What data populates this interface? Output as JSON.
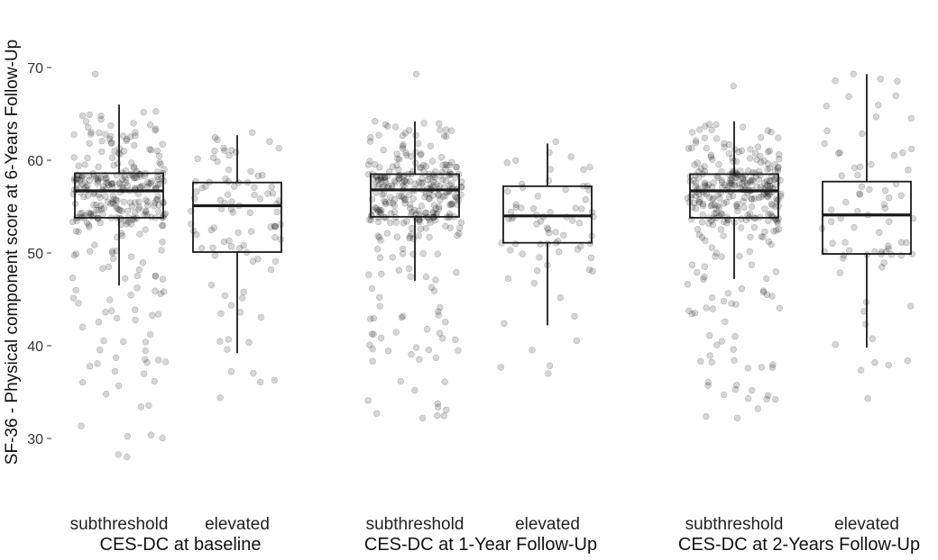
{
  "chart_data": {
    "type": "boxplot",
    "ylabel": "SF-36 - Physical component score at 6-Years Follow-Up",
    "ylim": [
      27,
      72
    ],
    "yticks": [
      30,
      40,
      50,
      60,
      70
    ],
    "grid": false,
    "points": "jittered individual observations, grey, semi-transparent",
    "panels": [
      {
        "title": "CES-DC at baseline",
        "categories": [
          "subthreshold",
          "elevated"
        ],
        "boxes": [
          {
            "category": "subthreshold",
            "whisker_low": 46.5,
            "q1": 53.8,
            "median": 56.7,
            "q3": 58.6,
            "whisker_high": 66.0,
            "n_points": 320,
            "min": 28.0,
            "max": 69.3
          },
          {
            "category": "elevated",
            "whisker_low": 39.2,
            "q1": 50.1,
            "median": 55.1,
            "q3": 57.6,
            "whisker_high": 62.7,
            "n_points": 90,
            "min": 34.4,
            "max": 63.0
          }
        ]
      },
      {
        "title": "CES-DC at 1-Year Follow-Up",
        "categories": [
          "subthreshold",
          "elevated"
        ],
        "boxes": [
          {
            "category": "subthreshold",
            "whisker_low": 47.0,
            "q1": 53.9,
            "median": 56.8,
            "q3": 58.5,
            "whisker_high": 64.2,
            "n_points": 330,
            "min": 32.2,
            "max": 69.3
          },
          {
            "category": "elevated",
            "whisker_low": 42.2,
            "q1": 51.1,
            "median": 54.0,
            "q3": 57.2,
            "whisker_high": 61.8,
            "n_points": 70,
            "min": 37.0,
            "max": 62.0
          }
        ]
      },
      {
        "title": "CES-DC at 2-Years Follow-Up",
        "categories": [
          "subthreshold",
          "elevated"
        ],
        "boxes": [
          {
            "category": "subthreshold",
            "whisker_low": 47.2,
            "q1": 53.8,
            "median": 56.7,
            "q3": 58.5,
            "whisker_high": 64.2,
            "n_points": 330,
            "min": 32.2,
            "max": 68.0
          },
          {
            "category": "elevated",
            "whisker_low": 39.8,
            "q1": 49.9,
            "median": 54.1,
            "q3": 57.7,
            "whisker_high": 69.3,
            "n_points": 75,
            "min": 34.3,
            "max": 69.3
          }
        ]
      }
    ]
  }
}
